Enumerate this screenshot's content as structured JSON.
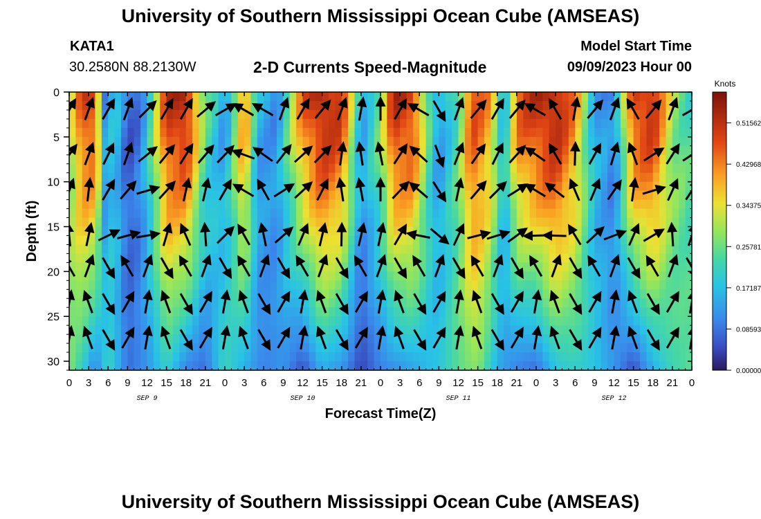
{
  "page": {
    "title": "University of Southern Mississippi Ocean Cube (AMSEAS)",
    "station": "KATA1",
    "coordinates": "30.2580N  88.2130W",
    "subtitle": "2-D Currents Speed-Magnitude",
    "model_start_label": "Model Start Time",
    "model_start_value": "09/09/2023 Hour 00",
    "footer_title": "University of Southern Mississippi Ocean Cube (AMSEAS)"
  },
  "chart_data": {
    "type": "heatmap",
    "title": "2-D Currents Speed-Magnitude",
    "xlabel": "Forecast Time(Z)",
    "ylabel": "Depth (ft)",
    "xlim": [
      0,
      96
    ],
    "ylim": [
      31,
      0
    ],
    "x_tick_labels": [
      "0",
      "3",
      "6",
      "9",
      "12",
      "15",
      "18",
      "21",
      "0",
      "3",
      "6",
      "9",
      "12",
      "15",
      "18",
      "21",
      "0",
      "3",
      "6",
      "9",
      "12",
      "15",
      "18",
      "21",
      "0",
      "3",
      "6",
      "9",
      "12",
      "15",
      "18",
      "21",
      "0"
    ],
    "y_ticks": [
      0,
      5,
      10,
      15,
      20,
      25,
      30
    ],
    "date_labels": [
      {
        "label": "SEP 9",
        "hour": 12
      },
      {
        "label": "SEP 10",
        "hour": 36
      },
      {
        "label": "SEP 11",
        "hour": 60
      },
      {
        "label": "SEP 12",
        "hour": 84
      }
    ],
    "colorbar": {
      "unit": "Knots",
      "min": 0.0,
      "max": 0.58,
      "tick_values": [
        0.0,
        0.08593,
        0.17187,
        0.25781,
        0.34375,
        0.42968,
        0.51562
      ],
      "tick_labels": [
        "0.00000",
        "0.08593",
        "0.17187",
        "0.25781",
        "0.34375",
        "0.42968",
        "0.51562"
      ]
    },
    "speed_profile_surface": [
      {
        "hour": 0,
        "v": 0.28
      },
      {
        "hour": 2,
        "v": 0.48
      },
      {
        "hour": 4,
        "v": 0.5
      },
      {
        "hour": 5.5,
        "v": 0.12
      },
      {
        "hour": 7,
        "v": 0.18
      },
      {
        "hour": 9,
        "v": 0.06
      },
      {
        "hour": 11,
        "v": 0.1
      },
      {
        "hour": 13,
        "v": 0.28
      },
      {
        "hour": 15,
        "v": 0.5
      },
      {
        "hour": 18,
        "v": 0.55
      },
      {
        "hour": 21,
        "v": 0.25
      },
      {
        "hour": 24,
        "v": 0.12
      },
      {
        "hour": 27,
        "v": 0.45
      },
      {
        "hour": 29,
        "v": 0.15
      },
      {
        "hour": 32,
        "v": 0.12
      },
      {
        "hour": 36,
        "v": 0.45
      },
      {
        "hour": 39,
        "v": 0.55
      },
      {
        "hour": 42,
        "v": 0.5
      },
      {
        "hour": 45,
        "v": 0.15
      },
      {
        "hour": 48,
        "v": 0.28
      },
      {
        "hour": 50,
        "v": 0.52
      },
      {
        "hour": 53,
        "v": 0.5
      },
      {
        "hour": 56,
        "v": 0.18
      },
      {
        "hour": 57,
        "v": 0.12
      },
      {
        "hour": 60,
        "v": 0.25
      },
      {
        "hour": 62,
        "v": 0.48
      },
      {
        "hour": 65,
        "v": 0.4
      },
      {
        "hour": 67,
        "v": 0.15
      },
      {
        "hour": 69,
        "v": 0.45
      },
      {
        "hour": 72,
        "v": 0.52
      },
      {
        "hour": 75,
        "v": 0.55
      },
      {
        "hour": 78,
        "v": 0.42
      },
      {
        "hour": 81,
        "v": 0.15
      },
      {
        "hour": 84,
        "v": 0.1
      },
      {
        "hour": 87,
        "v": 0.5
      },
      {
        "hour": 90,
        "v": 0.52
      },
      {
        "hour": 93,
        "v": 0.3
      },
      {
        "hour": 96,
        "v": 0.22
      }
    ],
    "speed_profile_bottom": [
      {
        "hour": 0,
        "v": 0.28
      },
      {
        "hour": 2,
        "v": 0.2
      },
      {
        "hour": 4,
        "v": 0.1
      },
      {
        "hour": 6,
        "v": 0.22
      },
      {
        "hour": 9,
        "v": 0.08
      },
      {
        "hour": 12,
        "v": 0.12
      },
      {
        "hour": 15,
        "v": 0.2
      },
      {
        "hour": 18,
        "v": 0.1
      },
      {
        "hour": 21,
        "v": 0.08
      },
      {
        "hour": 24,
        "v": 0.22
      },
      {
        "hour": 27,
        "v": 0.15
      },
      {
        "hour": 30,
        "v": 0.1
      },
      {
        "hour": 33,
        "v": 0.12
      },
      {
        "hour": 36,
        "v": 0.05
      },
      {
        "hour": 39,
        "v": 0.15
      },
      {
        "hour": 42,
        "v": 0.12
      },
      {
        "hour": 45,
        "v": 0.04
      },
      {
        "hour": 48,
        "v": 0.1
      },
      {
        "hour": 51,
        "v": 0.12
      },
      {
        "hour": 54,
        "v": 0.15
      },
      {
        "hour": 57,
        "v": 0.18
      },
      {
        "hour": 60,
        "v": 0.25
      },
      {
        "hour": 63,
        "v": 0.28
      },
      {
        "hour": 66,
        "v": 0.15
      },
      {
        "hour": 69,
        "v": 0.1
      },
      {
        "hour": 72,
        "v": 0.08
      },
      {
        "hour": 75,
        "v": 0.18
      },
      {
        "hour": 78,
        "v": 0.2
      },
      {
        "hour": 81,
        "v": 0.18
      },
      {
        "hour": 84,
        "v": 0.12
      },
      {
        "hour": 87,
        "v": 0.05
      },
      {
        "hour": 90,
        "v": 0.15
      },
      {
        "hour": 93,
        "v": 0.22
      },
      {
        "hour": 96,
        "v": 0.25
      }
    ],
    "vector_hours": [
      0,
      3,
      6,
      9,
      12,
      15,
      18,
      21,
      24,
      27,
      30,
      33,
      36,
      39,
      42,
      45,
      48,
      51,
      54,
      57,
      60,
      63,
      66,
      69,
      72,
      75,
      78,
      81,
      84,
      87,
      90,
      93,
      96
    ],
    "vector_depths": [
      2,
      7,
      11,
      16,
      19.5,
      23.5,
      27.5
    ],
    "vector_direction_surface_deg": [
      30,
      20,
      30,
      20,
      45,
      30,
      30,
      50,
      60,
      300,
      300,
      20,
      30,
      40,
      20,
      10,
      0,
      30,
      300,
      150,
      20,
      40,
      30,
      40,
      300,
      330,
      10,
      40,
      20,
      330,
      40,
      20,
      60
    ]
  }
}
